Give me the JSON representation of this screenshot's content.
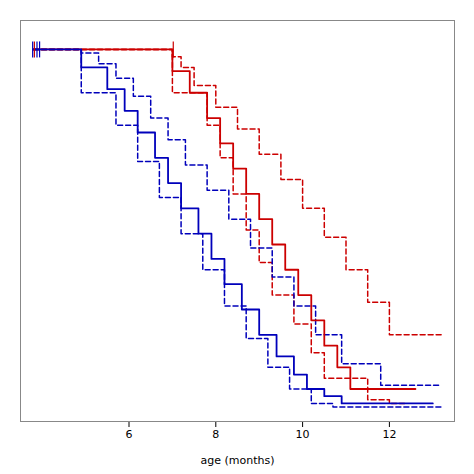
{
  "chart_data": {
    "type": "line",
    "xlabel": "age (months)",
    "xlim": [
      3.5,
      13.5
    ],
    "ylim": [
      -0.03,
      1.08
    ],
    "xticks": [
      6,
      8,
      10,
      12
    ],
    "tick_labels": "x",
    "grid": false,
    "series": [
      {
        "color": "#cc0000",
        "line_style": "dashed",
        "x": [
          3.8,
          7.0,
          7.0,
          7.2,
          7.2,
          7.5,
          7.5,
          8.0,
          8.0,
          8.5,
          8.5,
          9.0,
          9.0,
          9.5,
          9.5,
          10.0,
          10.0,
          10.5,
          10.5,
          11.0,
          11.0,
          11.5,
          11.5,
          12.0,
          12.0,
          13.2
        ],
        "values": [
          1.0,
          1.0,
          0.98,
          0.98,
          0.95,
          0.95,
          0.9,
          0.9,
          0.84,
          0.84,
          0.78,
          0.78,
          0.71,
          0.71,
          0.64,
          0.64,
          0.56,
          0.56,
          0.48,
          0.48,
          0.39,
          0.39,
          0.3,
          0.3,
          0.21,
          0.21
        ]
      },
      {
        "color": "#cc0000",
        "line_style": "dashed",
        "x": [
          3.8,
          7.0,
          7.0,
          7.8,
          7.8,
          8.1,
          8.1,
          8.4,
          8.4,
          8.7,
          8.7,
          9.0,
          9.0,
          9.3,
          9.3,
          9.8,
          9.8,
          10.2,
          10.2,
          10.5,
          10.5,
          11.5,
          11.5,
          12.0,
          12.0,
          12.4
        ],
        "values": [
          1.0,
          1.0,
          0.88,
          0.88,
          0.79,
          0.79,
          0.7,
          0.7,
          0.6,
          0.6,
          0.5,
          0.5,
          0.41,
          0.41,
          0.32,
          0.32,
          0.24,
          0.24,
          0.16,
          0.16,
          0.09,
          0.09,
          0.03,
          0.03,
          0.02,
          0.02
        ]
      },
      {
        "color": "#0000bb",
        "line_style": "dashed",
        "x": [
          3.8,
          4.9,
          4.9,
          5.3,
          5.3,
          5.7,
          5.7,
          6.1,
          6.1,
          6.5,
          6.5,
          6.9,
          6.9,
          7.3,
          7.3,
          7.8,
          7.8,
          8.3,
          8.3,
          8.8,
          8.8,
          9.3,
          9.3,
          9.8,
          9.8,
          10.3,
          10.3,
          10.9,
          10.9,
          11.8,
          11.8,
          13.2
        ],
        "values": [
          1.0,
          1.0,
          0.99,
          0.99,
          0.96,
          0.96,
          0.92,
          0.92,
          0.87,
          0.87,
          0.81,
          0.81,
          0.75,
          0.75,
          0.68,
          0.68,
          0.61,
          0.61,
          0.53,
          0.53,
          0.45,
          0.45,
          0.37,
          0.37,
          0.29,
          0.29,
          0.21,
          0.21,
          0.13,
          0.13,
          0.07,
          0.07
        ]
      },
      {
        "color": "#0000bb",
        "line_style": "dashed",
        "x": [
          3.8,
          4.9,
          4.9,
          5.7,
          5.7,
          6.2,
          6.2,
          6.7,
          6.7,
          7.2,
          7.2,
          7.7,
          7.7,
          8.2,
          8.2,
          8.7,
          8.7,
          9.2,
          9.2,
          9.7,
          9.7,
          10.2,
          10.2,
          10.7,
          10.7,
          11.2,
          11.2,
          13.2
        ],
        "values": [
          1.0,
          1.0,
          0.88,
          0.88,
          0.79,
          0.79,
          0.69,
          0.69,
          0.59,
          0.59,
          0.49,
          0.49,
          0.39,
          0.39,
          0.29,
          0.29,
          0.2,
          0.2,
          0.12,
          0.12,
          0.06,
          0.06,
          0.02,
          0.02,
          0.01,
          0.01,
          0.01,
          0.01
        ]
      },
      {
        "color": "#cc0000",
        "line_style": "solid",
        "x": [
          3.8,
          7.0,
          7.0,
          7.4,
          7.4,
          7.8,
          7.8,
          8.1,
          8.1,
          8.4,
          8.4,
          8.7,
          8.7,
          9.0,
          9.0,
          9.3,
          9.3,
          9.6,
          9.6,
          9.9,
          9.9,
          10.2,
          10.2,
          10.5,
          10.5,
          10.8,
          10.8,
          11.1,
          11.1,
          12.6
        ],
        "values": [
          1.0,
          1.0,
          0.94,
          0.94,
          0.88,
          0.88,
          0.81,
          0.81,
          0.74,
          0.74,
          0.67,
          0.67,
          0.6,
          0.6,
          0.53,
          0.53,
          0.46,
          0.46,
          0.39,
          0.39,
          0.32,
          0.32,
          0.25,
          0.25,
          0.18,
          0.18,
          0.12,
          0.12,
          0.06,
          0.06
        ]
      },
      {
        "color": "#0000bb",
        "line_style": "solid",
        "x": [
          3.8,
          4.9,
          4.9,
          5.5,
          5.5,
          5.9,
          5.9,
          6.2,
          6.2,
          6.6,
          6.6,
          6.9,
          6.9,
          7.2,
          7.2,
          7.6,
          7.6,
          7.9,
          7.9,
          8.2,
          8.2,
          8.6,
          8.6,
          9.0,
          9.0,
          9.4,
          9.4,
          9.8,
          9.8,
          10.1,
          10.1,
          10.5,
          10.5,
          10.9,
          10.9,
          11.6,
          11.6,
          13.0
        ],
        "values": [
          1.0,
          1.0,
          0.95,
          0.95,
          0.89,
          0.89,
          0.83,
          0.83,
          0.77,
          0.77,
          0.7,
          0.7,
          0.63,
          0.63,
          0.56,
          0.56,
          0.49,
          0.49,
          0.42,
          0.42,
          0.35,
          0.35,
          0.28,
          0.28,
          0.21,
          0.21,
          0.15,
          0.15,
          0.1,
          0.1,
          0.06,
          0.06,
          0.04,
          0.04,
          0.02,
          0.02,
          0.02,
          0.02
        ]
      },
      {
        "type": "scatter",
        "marker": "vline",
        "color": "#cc0000",
        "x": [
          3.82,
          7.02
        ],
        "values": [
          1.0,
          1.0
        ]
      },
      {
        "type": "scatter",
        "marker": "vline",
        "color": "#0000bb",
        "x": [
          3.78,
          3.88,
          3.94
        ],
        "values": [
          1.0,
          1.0,
          1.0
        ]
      }
    ]
  }
}
